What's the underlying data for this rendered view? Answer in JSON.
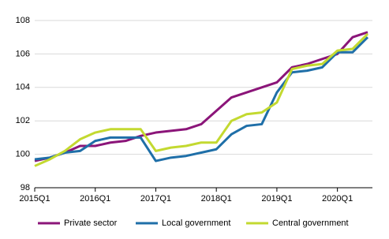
{
  "chart_data": {
    "type": "line",
    "categories": [
      "2015Q1",
      null,
      null,
      null,
      "2016Q1",
      null,
      null,
      null,
      "2017Q1",
      null,
      null,
      null,
      "2018Q1",
      null,
      null,
      null,
      "2019Q1",
      null,
      null,
      null,
      "2020Q1",
      null,
      null
    ],
    "series": [
      {
        "name": "Private sector",
        "color": "#8b1579",
        "values": [
          99.6,
          99.8,
          100.1,
          100.5,
          100.5,
          100.7,
          100.8,
          101.1,
          101.3,
          101.4,
          101.5,
          101.8,
          102.6,
          103.4,
          103.7,
          104.0,
          104.3,
          105.2,
          105.4,
          105.7,
          106.0,
          107.0,
          107.3
        ]
      },
      {
        "name": "Local government",
        "color": "#1f6fa8",
        "values": [
          99.7,
          99.8,
          100.1,
          100.2,
          100.8,
          101.0,
          101.0,
          101.0,
          99.6,
          99.8,
          99.9,
          100.1,
          100.3,
          101.2,
          101.7,
          101.8,
          103.7,
          104.9,
          105.0,
          105.2,
          106.1,
          106.1,
          107.0
        ]
      },
      {
        "name": "Central government",
        "color": "#c3d930",
        "values": [
          99.3,
          99.7,
          100.2,
          100.9,
          101.3,
          101.5,
          101.5,
          101.5,
          100.2,
          100.4,
          100.5,
          100.7,
          100.7,
          102.0,
          102.4,
          102.5,
          103.1,
          105.1,
          105.3,
          105.4,
          106.2,
          106.3,
          107.2
        ]
      }
    ],
    "ylim": [
      98,
      108
    ],
    "yticks": [
      98,
      100,
      102,
      104,
      106,
      108
    ],
    "grid": true,
    "legend": "bottom"
  }
}
